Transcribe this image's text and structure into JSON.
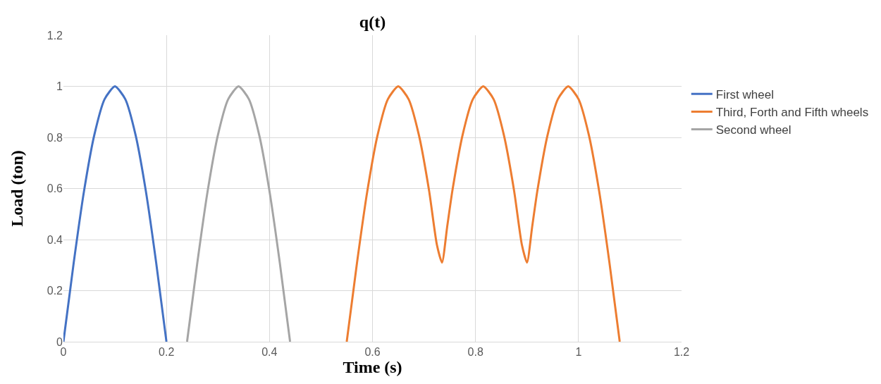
{
  "chart_data": {
    "type": "line",
    "title": "q(t)",
    "xlabel": "Time (s)",
    "ylabel": "Load (ton)",
    "xlim": [
      0,
      1.2
    ],
    "xticks": [
      0,
      0.2,
      0.4,
      0.6,
      0.8,
      1,
      1.2
    ],
    "ylim": [
      0,
      1.2
    ],
    "yticks": [
      0,
      0.2,
      0.4,
      0.6,
      0.8,
      1,
      1.2
    ],
    "grid": true,
    "legend": "right",
    "marker": "none",
    "line_style": "solid",
    "series": [
      {
        "name": "First wheel",
        "color": "#4472c4",
        "x": [
          0,
          0.02,
          0.04,
          0.06,
          0.08,
          0.1,
          0.12,
          0.14,
          0.16,
          0.18,
          0.2
        ],
        "values": [
          0,
          0.31,
          0.59,
          0.81,
          0.95,
          1,
          0.95,
          0.81,
          0.59,
          0.31,
          0
        ]
      },
      {
        "name": "Third, Forth and Fifth wheels",
        "color": "#ed7d31",
        "x": [
          0.55,
          0.57,
          0.59,
          0.61,
          0.63,
          0.65,
          0.67,
          0.69,
          0.71,
          0.725,
          0.735,
          0.745,
          0.755,
          0.775,
          0.795,
          0.815,
          0.835,
          0.855,
          0.875,
          0.89,
          0.9,
          0.91,
          0.92,
          0.94,
          0.96,
          0.98,
          1,
          1.02,
          1.04,
          1.06,
          1.08
        ],
        "values": [
          0,
          0.31,
          0.59,
          0.81,
          0.95,
          1,
          0.95,
          0.81,
          0.59,
          0.38,
          0.31,
          0.45,
          0.59,
          0.81,
          0.95,
          1,
          0.95,
          0.81,
          0.59,
          0.38,
          0.31,
          0.45,
          0.59,
          0.81,
          0.95,
          1,
          0.95,
          0.81,
          0.59,
          0.31,
          0
        ]
      },
      {
        "name": "Second wheel",
        "color": "#a5a5a5",
        "x": [
          0.24,
          0.26,
          0.28,
          0.3,
          0.32,
          0.34,
          0.36,
          0.38,
          0.4,
          0.42,
          0.44
        ],
        "values": [
          0,
          0.31,
          0.59,
          0.81,
          0.95,
          1,
          0.95,
          0.81,
          0.59,
          0.31,
          0
        ]
      }
    ]
  }
}
